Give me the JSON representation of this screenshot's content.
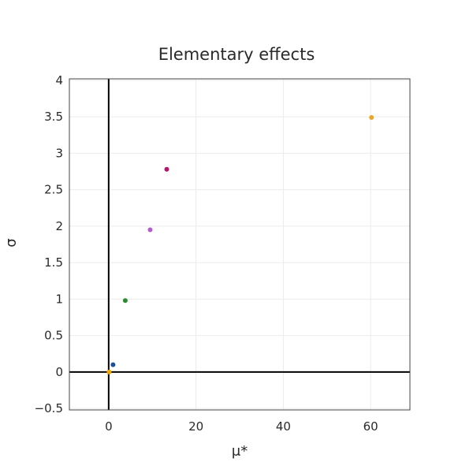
{
  "chart_data": {
    "type": "scatter",
    "title": "Elementary effects",
    "xlabel": "μ*",
    "ylabel": "σ",
    "xlim": [
      -9,
      69
    ],
    "ylim": [
      -0.52,
      4.02
    ],
    "x_ticks": [
      0,
      20,
      40,
      60
    ],
    "x_tick_labels": [
      "0",
      "20",
      "40",
      "60"
    ],
    "y_ticks": [
      -0.5,
      0,
      0.5,
      1,
      1.5,
      2,
      2.5,
      3,
      3.5,
      4
    ],
    "y_tick_labels": [
      "−0.5",
      "0",
      "0.5",
      "1",
      "1.5",
      "2",
      "2.5",
      "3",
      "3.5",
      "4"
    ],
    "grid": true,
    "zero_lines": true,
    "points": [
      {
        "x": 0.1,
        "y": 0.0,
        "color": "#f2a500"
      },
      {
        "x": 1.0,
        "y": 0.1,
        "color": "#1f4e9c"
      },
      {
        "x": 3.8,
        "y": 0.98,
        "color": "#2a8a2f"
      },
      {
        "x": 9.5,
        "y": 1.95,
        "color": "#b45ccc"
      },
      {
        "x": 13.3,
        "y": 2.78,
        "color": "#b3166e"
      },
      {
        "x": 60.2,
        "y": 3.49,
        "color": "#e8a72a"
      }
    ]
  }
}
